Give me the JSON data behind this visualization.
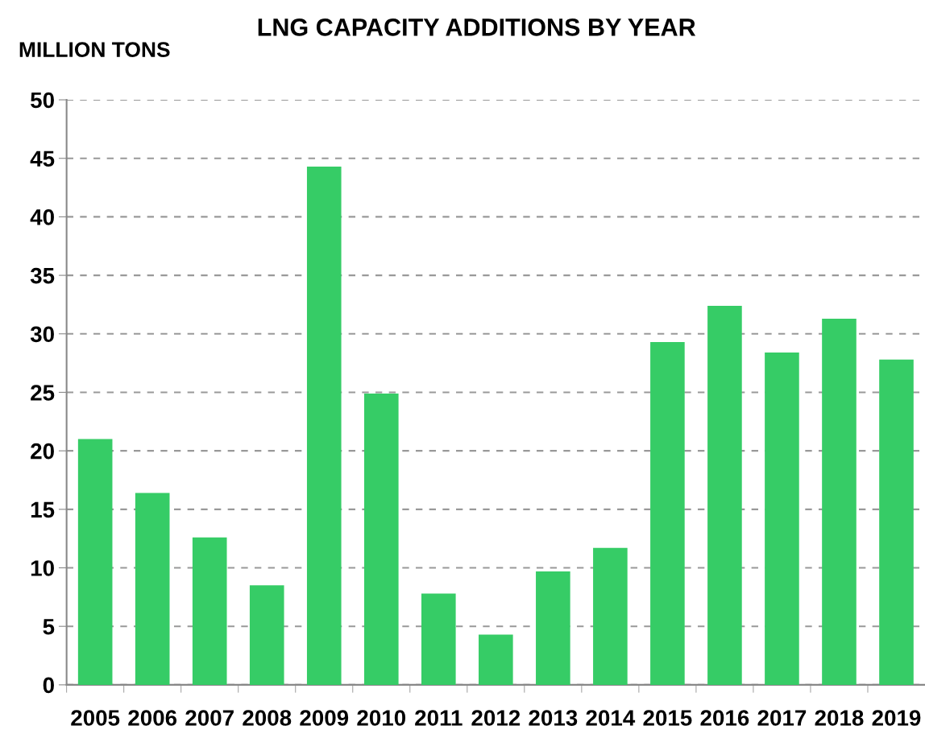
{
  "chart_data": {
    "type": "bar",
    "title": "LNG CAPACITY ADDITIONS BY YEAR",
    "ylabel": "MILLION TONS",
    "categories": [
      "2005",
      "2006",
      "2007",
      "2008",
      "2009",
      "2010",
      "2011",
      "2012",
      "2013",
      "2014",
      "2015",
      "2016",
      "2017",
      "2018",
      "2019"
    ],
    "values": [
      21.0,
      16.4,
      12.6,
      8.5,
      44.3,
      24.9,
      7.8,
      4.3,
      9.7,
      11.7,
      29.3,
      32.4,
      28.4,
      31.3,
      27.8
    ],
    "color": "#36cc66",
    "ylim": [
      0,
      50
    ],
    "yticks": [
      0,
      5,
      10,
      15,
      20,
      25,
      30,
      35,
      40,
      45,
      50
    ],
    "grid": "y"
  }
}
